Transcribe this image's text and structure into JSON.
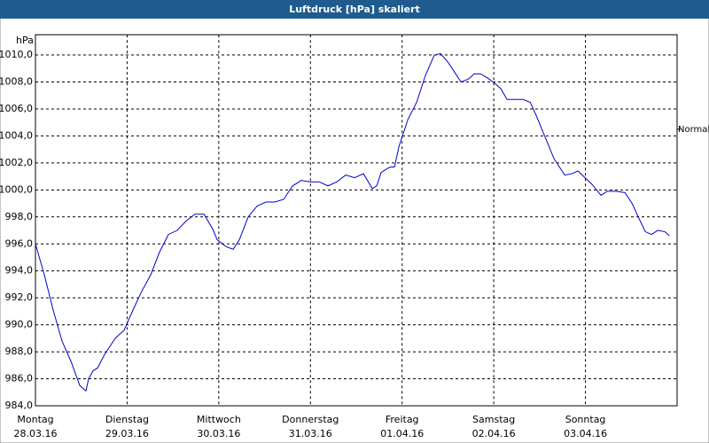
{
  "chart_data": {
    "type": "line",
    "title": "Luftdruck [hPa] skaliert",
    "y_unit": "hPa",
    "xlim": [
      0,
      7
    ],
    "xticks": [
      {
        "value": 0,
        "label": "Montag"
      },
      {
        "value": 1,
        "label": "Dienstag"
      },
      {
        "value": 2,
        "label": "Mittwoch"
      },
      {
        "value": 3,
        "label": "Donnerstag"
      },
      {
        "value": 4,
        "label": "Freitag"
      },
      {
        "value": 5,
        "label": "Samstag"
      },
      {
        "value": 6,
        "label": "Sonntag"
      }
    ],
    "xtick_dates": [
      "28.03.16",
      "29.03.16",
      "30.03.16",
      "31.03.16",
      "01.04.16",
      "02.04.16",
      "03.04.16"
    ],
    "ylim": [
      984,
      1011.5
    ],
    "yticks": [
      {
        "value": 984,
        "label": "984,0"
      },
      {
        "value": 986,
        "label": "986,0"
      },
      {
        "value": 988,
        "label": "988,0"
      },
      {
        "value": 990,
        "label": "990,0"
      },
      {
        "value": 992,
        "label": "992,0"
      },
      {
        "value": 994,
        "label": "994,0"
      },
      {
        "value": 996,
        "label": "996,0"
      },
      {
        "value": 998,
        "label": "998,0"
      },
      {
        "value": 1000,
        "label": "1000,0"
      },
      {
        "value": 1002,
        "label": "1002,0"
      },
      {
        "value": 1004,
        "label": "1004,0"
      },
      {
        "value": 1006,
        "label": "1006,0"
      },
      {
        "value": 1008,
        "label": "1008,0"
      },
      {
        "value": 1010,
        "label": "1010,0"
      }
    ],
    "grid": true,
    "annotation": {
      "text": "Normal",
      "value": 1004.5
    },
    "x": [
      0,
      0.097,
      0.193,
      0.29,
      0.387,
      0.484,
      0.551,
      0.58,
      0.629,
      0.677,
      0.754,
      0.87,
      0.967,
      1.064,
      1.161,
      1.257,
      1.354,
      1.451,
      1.547,
      1.644,
      1.741,
      1.838,
      1.934,
      1.983,
      2.079,
      2.157,
      2.224,
      2.321,
      2.418,
      2.515,
      2.611,
      2.708,
      2.805,
      2.901,
      2.998,
      3.095,
      3.191,
      3.288,
      3.385,
      3.482,
      3.578,
      3.675,
      3.723,
      3.772,
      3.868,
      3.917,
      3.965,
      4.062,
      4.159,
      4.255,
      4.352,
      4.42,
      4.497,
      4.565,
      4.642,
      4.72,
      4.787,
      4.855,
      4.932,
      5.01,
      5.077,
      5.145,
      5.222,
      5.319,
      5.397,
      5.464,
      5.561,
      5.658,
      5.774,
      5.851,
      5.919,
      5.996,
      6.073,
      6.17,
      6.238,
      6.335,
      6.431,
      6.509,
      6.576,
      6.654,
      6.721,
      6.789,
      6.867,
      6.915
    ],
    "series": [
      {
        "color": "#0000cc",
        "values": [
          996.0,
          993.7,
          991.1,
          988.8,
          987.3,
          985.5,
          985.1,
          986.0,
          986.6,
          986.8,
          987.8,
          989.0,
          989.6,
          991.1,
          992.5,
          993.7,
          995.4,
          996.7,
          997.0,
          997.7,
          998.2,
          998.2,
          997.1,
          996.3,
          995.8,
          995.6,
          996.3,
          998.0,
          998.8,
          999.1,
          999.1,
          999.3,
          1000.3,
          1000.7,
          1000.6,
          1000.6,
          1000.3,
          1000.6,
          1001.1,
          1000.9,
          1001.2,
          1000.1,
          1000.3,
          1001.3,
          1001.7,
          1001.7,
          1003.2,
          1005.2,
          1006.5,
          1008.5,
          1010.0,
          1010.1,
          1009.5,
          1008.8,
          1008.0,
          1008.2,
          1008.6,
          1008.6,
          1008.3,
          1007.9,
          1007.5,
          1006.7,
          1006.7,
          1006.7,
          1006.5,
          1005.5,
          1003.9,
          1002.3,
          1001.1,
          1001.2,
          1001.4,
          1000.9,
          1000.4,
          999.6,
          999.9,
          999.9,
          999.8,
          999.0,
          998.0,
          996.9,
          996.7,
          997.0,
          996.9,
          996.6
        ]
      }
    ]
  }
}
